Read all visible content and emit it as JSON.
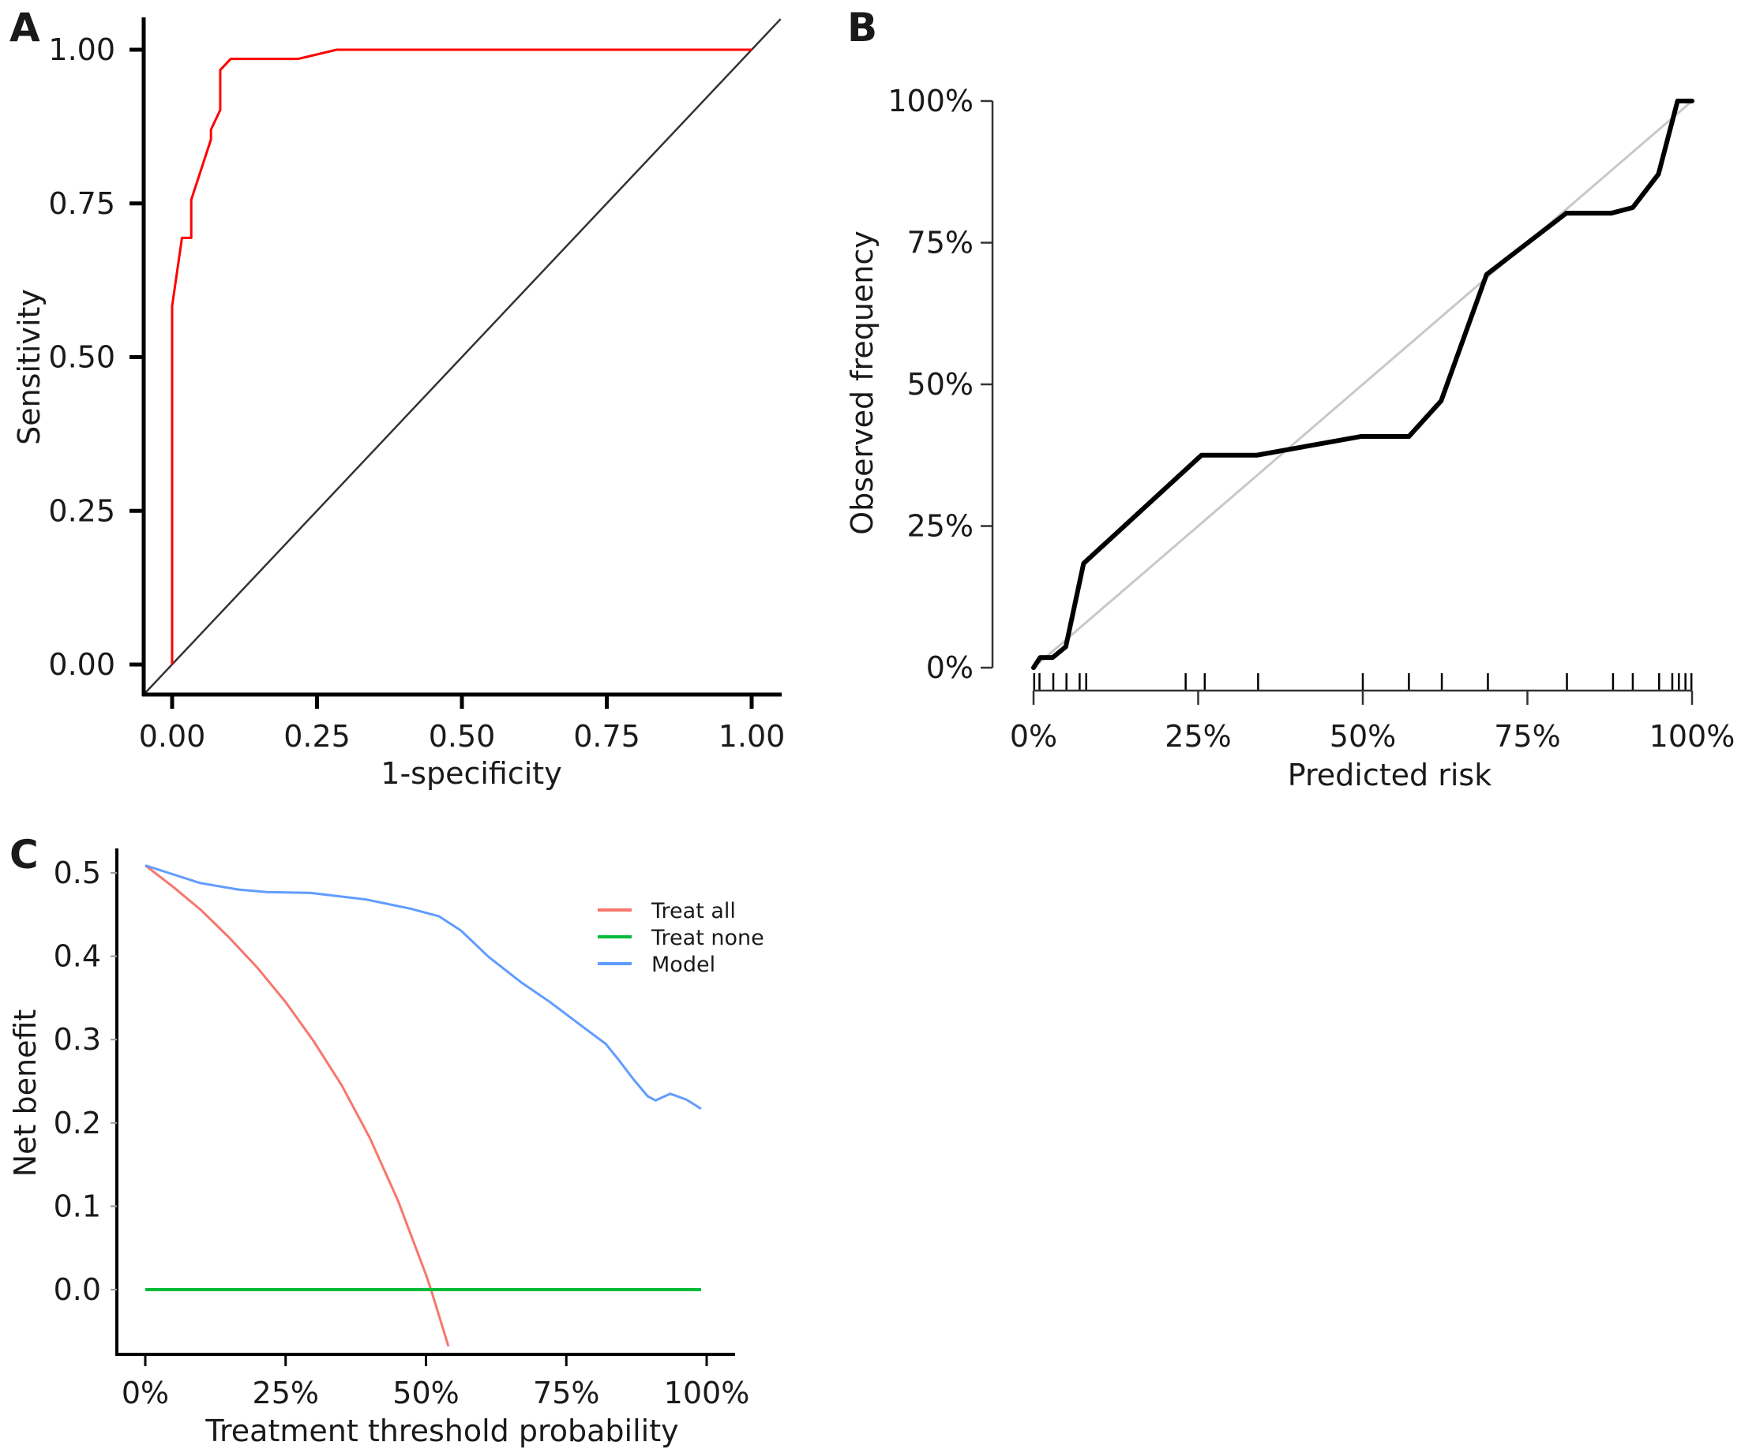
{
  "figure": {
    "panels": [
      "A",
      "B",
      "C"
    ]
  },
  "chart_data": [
    {
      "panel": "A",
      "type": "line",
      "title": "",
      "xlabel": "1-specificity",
      "ylabel": "Sensitivity",
      "xlim": [
        0,
        1
      ],
      "ylim": [
        0,
        1
      ],
      "xticks": [
        0,
        0.25,
        0.5,
        0.75,
        1.0
      ],
      "xtick_labels": [
        "0.00",
        "0.25",
        "0.50",
        "0.75",
        "1.00"
      ],
      "yticks": [
        0,
        0.25,
        0.5,
        0.75,
        1.0
      ],
      "ytick_labels": [
        "0.00",
        "0.25",
        "0.50",
        "0.75",
        "1.00"
      ],
      "grid": false,
      "series": [
        {
          "name": "ROC curve",
          "color": "#ff0000",
          "x": [
            0,
            0,
            0.017,
            0.033,
            0.033,
            0.067,
            0.067,
            0.083,
            0.083,
            0.101,
            0.217,
            0.284,
            1.0
          ],
          "y": [
            0,
            0.583,
            0.694,
            0.694,
            0.756,
            0.854,
            0.87,
            0.902,
            0.967,
            0.985,
            0.985,
            1.0,
            1.0
          ]
        },
        {
          "name": "Reference diagonal",
          "color": "#333333",
          "x": [
            -0.05,
            1.05
          ],
          "y": [
            -0.05,
            1.05
          ]
        }
      ]
    },
    {
      "panel": "B",
      "type": "line",
      "title": "",
      "xlabel": "Predicted risk",
      "ylabel": "Observed frequency",
      "xlim": [
        0,
        1
      ],
      "ylim": [
        0,
        1
      ],
      "xticks": [
        0,
        0.25,
        0.5,
        0.75,
        1.0
      ],
      "xtick_labels": [
        "0%",
        "25%",
        "50%",
        "75%",
        "100%"
      ],
      "yticks": [
        0,
        0.25,
        0.5,
        0.75,
        1.0
      ],
      "ytick_labels": [
        "0%",
        "25%",
        "50%",
        "75%",
        "100%"
      ],
      "grid": false,
      "series": [
        {
          "name": "Ideal",
          "color": "#c8c8c8",
          "x": [
            0,
            1
          ],
          "y": [
            0,
            1
          ]
        },
        {
          "name": "Calibration curve",
          "color": "#000000",
          "x": [
            0,
            0.01,
            0.029,
            0.049,
            0.076,
            0.255,
            0.339,
            0.497,
            0.57,
            0.619,
            0.688,
            0.809,
            0.877,
            0.91,
            0.949,
            0.978,
            1.0
          ],
          "y": [
            0,
            0.018,
            0.018,
            0.037,
            0.184,
            0.375,
            0.375,
            0.408,
            0.408,
            0.471,
            0.694,
            0.802,
            0.802,
            0.812,
            0.871,
            1.0,
            1.0
          ]
        }
      ],
      "rug": [
        0.001,
        0.009,
        0.03,
        0.05,
        0.07,
        0.08,
        0.231,
        0.26,
        0.341,
        0.5,
        0.57,
        0.62,
        0.69,
        0.81,
        0.88,
        0.91,
        0.95,
        0.97,
        0.98,
        0.99,
        0.999
      ]
    },
    {
      "panel": "C",
      "type": "line",
      "title": "",
      "xlabel": "Treatment threshold probability",
      "ylabel": "Net benefit",
      "xlim": [
        0,
        1
      ],
      "ylim": [
        -0.077,
        0.53
      ],
      "xticks": [
        0,
        0.25,
        0.5,
        0.75,
        1.0
      ],
      "xtick_labels": [
        "0%",
        "25%",
        "50%",
        "75%",
        "100%"
      ],
      "yticks": [
        0.0,
        0.1,
        0.2,
        0.3,
        0.4,
        0.5
      ],
      "ytick_labels": [
        "0.0",
        "0.1",
        "0.2",
        "0.3",
        "0.4",
        "0.5"
      ],
      "grid": false,
      "legend": {
        "position": "top-right",
        "entries": [
          "Treat all",
          "Treat none",
          "Model"
        ]
      },
      "series": [
        {
          "name": "Treat all",
          "color": "#f8766d",
          "x": [
            0,
            0.05,
            0.1,
            0.15,
            0.2,
            0.25,
            0.3,
            0.35,
            0.4,
            0.45,
            0.5,
            0.509,
            0.54
          ],
          "y": [
            0.509,
            0.483,
            0.455,
            0.422,
            0.386,
            0.345,
            0.298,
            0.245,
            0.182,
            0.107,
            0.018,
            0.0,
            -0.068
          ]
        },
        {
          "name": "Treat none",
          "color": "#00ba38",
          "x": [
            0,
            0.99
          ],
          "y": [
            0,
            0
          ]
        },
        {
          "name": "Model",
          "color": "#619cff",
          "x": [
            0,
            0.097,
            0.166,
            0.216,
            0.295,
            0.394,
            0.473,
            0.523,
            0.562,
            0.612,
            0.671,
            0.721,
            0.78,
            0.82,
            0.844,
            0.87,
            0.895,
            0.909,
            0.935,
            0.964,
            0.99
          ],
          "y": [
            0.509,
            0.488,
            0.48,
            0.477,
            0.476,
            0.468,
            0.457,
            0.448,
            0.431,
            0.399,
            0.368,
            0.345,
            0.315,
            0.295,
            0.275,
            0.252,
            0.232,
            0.227,
            0.235,
            0.228,
            0.217
          ]
        }
      ]
    }
  ]
}
